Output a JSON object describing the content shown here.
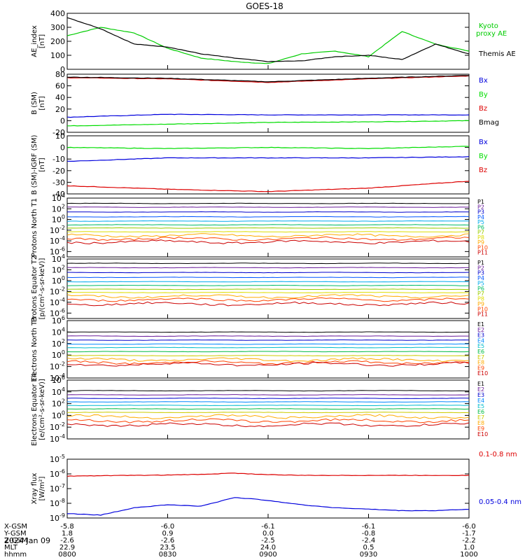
{
  "title": "GOES-18",
  "date_label": "2024 Jan 09",
  "ephemeris": {
    "row_labels": [
      "X-GSM",
      "Y-GSM",
      "Z-GSM",
      "MLT",
      "hhmm"
    ],
    "columns": [
      [
        "-5.8",
        "1.8",
        "-2.6",
        "22.9",
        "0800"
      ],
      [
        "-6.0",
        "0.9",
        "-2.6",
        "23.5",
        "0830"
      ],
      [
        "-6.1",
        "0.0",
        "-2.5",
        "24.0",
        "0900"
      ],
      [
        "-6.1",
        "-0.8",
        "-2.4",
        "0.5",
        "0930"
      ],
      [
        "-6.0",
        "-1.7",
        "-2.2",
        "1.0",
        "1000"
      ]
    ]
  },
  "colors": {
    "black": "#000000",
    "green": "#00dd00",
    "blue": "#0000dd",
    "red": "#dd0000",
    "ae_green": "#00cc00",
    "darkred": "#990000"
  },
  "chart_data": [
    {
      "type": "line",
      "ylabel": "AE_index [nT]",
      "ylim": [
        0,
        400
      ],
      "yticks": [
        "0",
        "100",
        "200",
        "300",
        "400"
      ],
      "x": [
        "0800",
        "0810",
        "0820",
        "0830",
        "0840",
        "0850",
        "0900",
        "0910",
        "0920",
        "0930",
        "0940",
        "0950",
        "1000"
      ],
      "series": [
        {
          "name": "Kyoto proxy AE",
          "color": "#00cc00",
          "values": [
            240,
            300,
            260,
            150,
            80,
            55,
            40,
            110,
            130,
            90,
            270,
            180,
            130
          ]
        },
        {
          "name": "Themis AE",
          "color": "#000000",
          "values": [
            370,
            290,
            180,
            160,
            110,
            80,
            55,
            60,
            90,
            100,
            70,
            180,
            110
          ]
        }
      ]
    },
    {
      "type": "line",
      "ylabel": "B (SM) [nT]",
      "ylim": [
        -20,
        80
      ],
      "yticks": [
        "-20",
        "0",
        "20",
        "40",
        "60",
        "80"
      ],
      "x": [
        "0800",
        "0830",
        "0900",
        "0930",
        "1000"
      ],
      "series": [
        {
          "name": "Bx",
          "color": "#0000dd",
          "values": [
            6,
            11,
            10,
            10,
            10
          ]
        },
        {
          "name": "By",
          "color": "#00dd00",
          "values": [
            -9,
            -6,
            -3,
            -2,
            0
          ]
        },
        {
          "name": "Bz",
          "color": "#dd0000",
          "values": [
            74,
            72,
            66,
            72,
            77
          ]
        },
        {
          "name": "Bmag",
          "color": "#000000",
          "values": [
            75,
            73,
            67,
            73,
            78
          ]
        }
      ]
    },
    {
      "type": "line",
      "ylabel": "B (SM)-IGRF (SM) [nT]",
      "ylim": [
        -40,
        10
      ],
      "yticks": [
        "-40",
        "-30",
        "-20",
        "-10",
        "0",
        "10"
      ],
      "x": [
        "0800",
        "0830",
        "0900",
        "0930",
        "1000"
      ],
      "series": [
        {
          "name": "Bx",
          "color": "#0000dd",
          "values": [
            -12,
            -9,
            -9,
            -9,
            -8
          ]
        },
        {
          "name": "By",
          "color": "#00dd00",
          "values": [
            0,
            -1,
            0,
            -1,
            1
          ]
        },
        {
          "name": "Bz",
          "color": "#dd0000",
          "values": [
            -33,
            -36,
            -38,
            -35,
            -29
          ]
        }
      ]
    },
    {
      "type": "line",
      "ylabel": "Protons North T1",
      "yscale": "log",
      "ylim": [
        -7,
        4
      ],
      "yticks": [
        "10^4",
        "10^2",
        "10^0",
        "10^-2",
        "10^-4",
        "10^-6"
      ],
      "channels": [
        "P1",
        "P2",
        "P3",
        "P4",
        "P5",
        "P6",
        "P7",
        "P8",
        "P9",
        "P10",
        "P11"
      ],
      "channel_colors": [
        "#000000",
        "#6a1b9a",
        "#0000cc",
        "#0055ff",
        "#00aaee",
        "#00bb66",
        "#99cc00",
        "#dddd00",
        "#ffaa00",
        "#ff4400",
        "#cc0000"
      ],
      "levels": [
        3.0,
        2.3,
        1.4,
        0.5,
        -0.3,
        -1.0,
        -1.6,
        -2.3,
        -3.0,
        -3.6,
        -4.2
      ]
    },
    {
      "type": "line",
      "ylabel": "Protons Equator T2 [p/(cm²-s-sr-keV)]",
      "yscale": "log",
      "ylim": [
        -7,
        4
      ],
      "yticks": [
        "10^4",
        "10^2",
        "10^0",
        "10^-2",
        "10^-4",
        "10^-6"
      ],
      "channels": [
        "P1",
        "P2",
        "P3",
        "P4",
        "P5",
        "P6",
        "P7",
        "P8",
        "P9",
        "P10",
        "P11"
      ],
      "channel_colors": [
        "#000000",
        "#6a1b9a",
        "#0000cc",
        "#0055ff",
        "#00aaee",
        "#00bb66",
        "#99cc00",
        "#dddd00",
        "#ffaa00",
        "#ff4400",
        "#cc0000"
      ],
      "levels": [
        3.2,
        2.4,
        1.5,
        0.6,
        -0.2,
        -0.9,
        -1.6,
        -2.2,
        -2.9,
        -3.5,
        -4.3
      ]
    },
    {
      "type": "line",
      "ylabel": "Electrons North T3",
      "yscale": "log",
      "ylim": [
        -4,
        6
      ],
      "yticks": [
        "10^6",
        "10^4",
        "10^2",
        "10^0",
        "10^-2",
        "10^-4"
      ],
      "channels": [
        "E1",
        "E2",
        "E3",
        "E4",
        "E5",
        "E6",
        "E7",
        "E8",
        "E9",
        "E10"
      ],
      "channel_colors": [
        "#000000",
        "#6a1b9a",
        "#0000cc",
        "#0088ff",
        "#00bbcc",
        "#00bb44",
        "#cccc00",
        "#ffaa00",
        "#ff4400",
        "#cc0000"
      ],
      "levels": [
        4.0,
        3.3,
        2.6,
        1.9,
        1.3,
        0.6,
        -0.1,
        -0.8,
        -1.3,
        -1.6
      ]
    },
    {
      "type": "line",
      "ylabel": "Electrons Equator T4 [e/(cm²-s-sr-keV)]",
      "yscale": "log",
      "ylim": [
        -4,
        6
      ],
      "yticks": [
        "10^6",
        "10^4",
        "10^2",
        "10^0",
        "10^-2",
        "10^-4"
      ],
      "channels": [
        "E1",
        "E2",
        "E3",
        "E4",
        "E5",
        "E6",
        "E7",
        "E8",
        "E9",
        "E10"
      ],
      "channel_colors": [
        "#000000",
        "#6a1b9a",
        "#0000cc",
        "#0088ff",
        "#00bbcc",
        "#00bb44",
        "#cccc00",
        "#ffaa00",
        "#ff4400",
        "#cc0000"
      ],
      "levels": [
        4.2,
        3.5,
        2.9,
        2.3,
        1.7,
        1.1,
        0.5,
        -0.2,
        -0.9,
        -1.6
      ]
    },
    {
      "type": "line",
      "ylabel": "Xray flux [W/m²]",
      "yscale": "log",
      "ylim": [
        -9,
        -5
      ],
      "yticks": [
        "10^-5",
        "10^-6",
        "10^-7",
        "10^-8",
        "10^-9"
      ],
      "x": [
        "0800",
        "0810",
        "0820",
        "0830",
        "0840",
        "0850",
        "0900",
        "0910",
        "0920",
        "0930",
        "0940",
        "0950",
        "1000"
      ],
      "series": [
        {
          "name": "0.1-0.8 nm",
          "color": "#dd0000",
          "values": [
            -6.15,
            -6.12,
            -6.1,
            -6.08,
            -6.03,
            -5.95,
            -6.05,
            -6.1,
            -6.1,
            -6.1,
            -6.1,
            -6.1,
            -6.1
          ]
        },
        {
          "name": "0.05-0.4 nm",
          "color": "#0000dd",
          "values": [
            -8.7,
            -8.8,
            -8.3,
            -8.1,
            -8.2,
            -7.6,
            -7.8,
            -8.1,
            -8.3,
            -8.4,
            -8.5,
            -8.5,
            -8.4
          ]
        }
      ]
    }
  ]
}
